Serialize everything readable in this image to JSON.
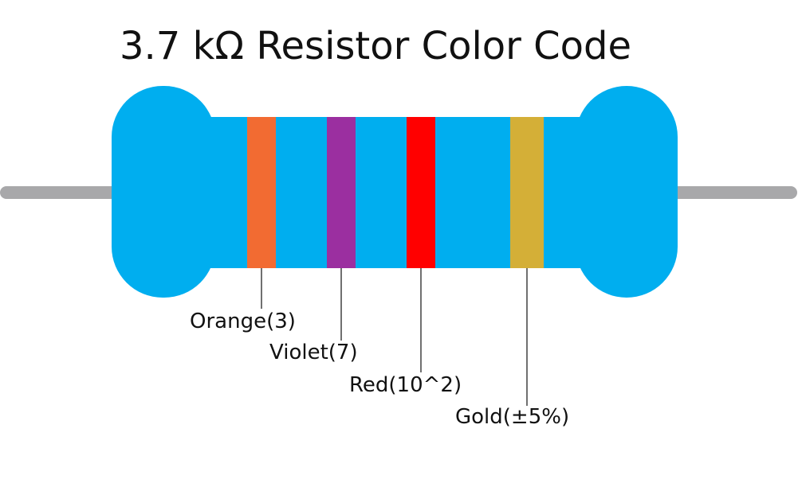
{
  "title": "3.7 kΩ Resistor Color Code",
  "colors": {
    "lead": "#a8a8aa",
    "body": "#00aeef",
    "leader_line": "#111111"
  },
  "bands": [
    {
      "name": "band-1",
      "color": "#f26b32",
      "label": "Orange(3)"
    },
    {
      "name": "band-2",
      "color": "#9b2fa0",
      "label": "Violet(7)"
    },
    {
      "name": "band-3",
      "color": "#ff0000",
      "label": "Red(10^2)"
    },
    {
      "name": "band-4",
      "color": "#d4af37",
      "label": "Gold(±5%)"
    }
  ]
}
